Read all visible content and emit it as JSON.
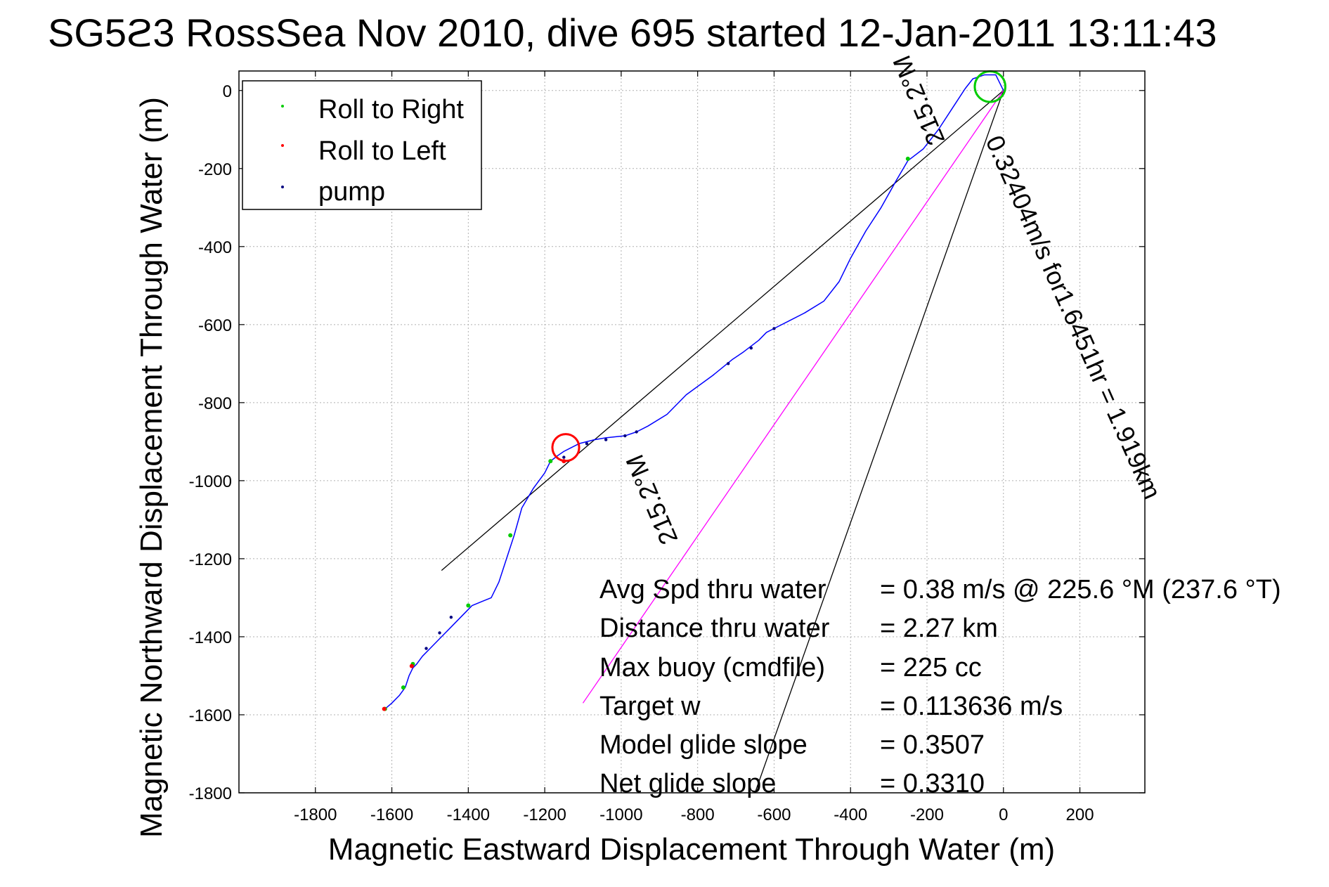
{
  "chart_data": {
    "type": "line",
    "title": "SG5ϩ3 RossSea Nov 2010, dive 695 started 12-Jan-2011 13:11:43",
    "xlabel": "Magnetic Eastward Displacement Through Water (m)",
    "ylabel": "Magnetic Northward Displacement Through Water (m)",
    "xlim": [
      -2000,
      370
    ],
    "ylim": [
      -1800,
      50
    ],
    "xticks": [
      -1800,
      -1600,
      -1400,
      -1200,
      -1000,
      -800,
      -600,
      -400,
      -200,
      0,
      200
    ],
    "yticks": [
      0,
      -200,
      -400,
      -600,
      -800,
      -1000,
      -1200,
      -1400,
      -1600,
      -1800
    ],
    "grid": true,
    "legend_position": "top-left",
    "legend": [
      {
        "label": "Roll to Right",
        "color": "#00cc00"
      },
      {
        "label": "Roll to Left",
        "color": "#ff0000"
      },
      {
        "label": "pump",
        "color": "#000080"
      }
    ],
    "track": {
      "color": "#0000ff",
      "x": [
        0,
        -20,
        -50,
        -80,
        -100,
        -130,
        -170,
        -210,
        -250,
        -280,
        -320,
        -360,
        -400,
        -430,
        -470,
        -520,
        -560,
        -600,
        -620,
        -640,
        -680,
        -710,
        -760,
        -830,
        -880,
        -930,
        -960,
        -990,
        -1040,
        -1070,
        -1090,
        -1110,
        -1130,
        -1150,
        -1165,
        -1185,
        -1200,
        -1230,
        -1260,
        -1280,
        -1300,
        -1320,
        -1340,
        -1365,
        -1390,
        -1400,
        -1420,
        -1440,
        -1460,
        -1480,
        -1500,
        -1520,
        -1535,
        -1545,
        -1555,
        -1565,
        -1580,
        -1600,
        -1618
      ],
      "y": [
        0,
        40,
        40,
        30,
        5,
        -40,
        -100,
        -150,
        -180,
        -230,
        -300,
        -360,
        -430,
        -490,
        -540,
        -570,
        -590,
        -610,
        -620,
        -640,
        -670,
        -690,
        -730,
        -780,
        -830,
        -860,
        -875,
        -885,
        -890,
        -895,
        -900,
        -905,
        -915,
        -925,
        -935,
        -950,
        -980,
        -1020,
        -1070,
        -1140,
        -1200,
        -1260,
        -1300,
        -1310,
        -1320,
        -1330,
        -1350,
        -1370,
        -1390,
        -1410,
        -1430,
        -1450,
        -1470,
        -1480,
        -1500,
        -1530,
        -1550,
        -1570,
        -1585
      ]
    },
    "lines": [
      {
        "name": "black-1",
        "color": "#000000",
        "x": [
          0,
          -1470
        ],
        "y": [
          0,
          -1230
        ]
      },
      {
        "name": "black-2",
        "color": "#000000",
        "x": [
          0,
          -650
        ],
        "y": [
          0,
          -1800
        ]
      },
      {
        "name": "magenta",
        "color": "#ff00ff",
        "x": [
          0,
          -1100
        ],
        "y": [
          0,
          -1570
        ]
      }
    ],
    "circles": [
      {
        "color": "#00cc00",
        "cx": -35,
        "cy": 10,
        "r": 40
      },
      {
        "color": "#ff0000",
        "cx": -1145,
        "cy": -915,
        "r": 35
      }
    ],
    "roll_right_points": [
      {
        "x": -1618,
        "y": -1585
      },
      {
        "x": -1570,
        "y": -1530
      },
      {
        "x": -1545,
        "y": -1470
      },
      {
        "x": -1400,
        "y": -1320
      },
      {
        "x": -1290,
        "y": -1140
      },
      {
        "x": -1185,
        "y": -950
      },
      {
        "x": -250,
        "y": -175
      }
    ],
    "roll_left_points": [
      {
        "x": -1620,
        "y": -1585
      },
      {
        "x": -1548,
        "y": -1475
      },
      {
        "x": -1150,
        "y": -950
      }
    ],
    "pump_points": [
      {
        "x": -1510,
        "y": -1430
      },
      {
        "x": -1475,
        "y": -1390
      },
      {
        "x": -1445,
        "y": -1350
      },
      {
        "x": -1150,
        "y": -940
      },
      {
        "x": -1090,
        "y": -905
      },
      {
        "x": -1040,
        "y": -895
      },
      {
        "x": -990,
        "y": -885
      },
      {
        "x": -960,
        "y": -875
      },
      {
        "x": -720,
        "y": -700
      },
      {
        "x": -660,
        "y": -660
      },
      {
        "x": -600,
        "y": -610
      }
    ],
    "annotations": [
      {
        "text": "0.32404m/s for1.6451hr = 1.919km",
        "x": -80,
        "y": -160,
        "rotate": 66
      },
      {
        "text": "215.2°M",
        "x": -145,
        "y": -160,
        "rotate": 247
      },
      {
        "text": "215.2°M",
        "x": -990,
        "y": -1240,
        "rotate": 247
      }
    ],
    "stats": [
      {
        "label": "Avg Spd thru water",
        "value": "=  0.38 m/s @ 225.6 °M (237.6 °T)"
      },
      {
        "label": "Distance thru water",
        "value": "=  2.27 km"
      },
      {
        "label": "Max buoy (cmdfile)",
        "value": "= 225 cc"
      },
      {
        "label": "Target w",
        "value": "= 0.113636 m/s"
      },
      {
        "label": "Model glide slope",
        "value": "= 0.3507"
      },
      {
        "label": "Net glide slope",
        "value": "= 0.3310"
      }
    ]
  }
}
